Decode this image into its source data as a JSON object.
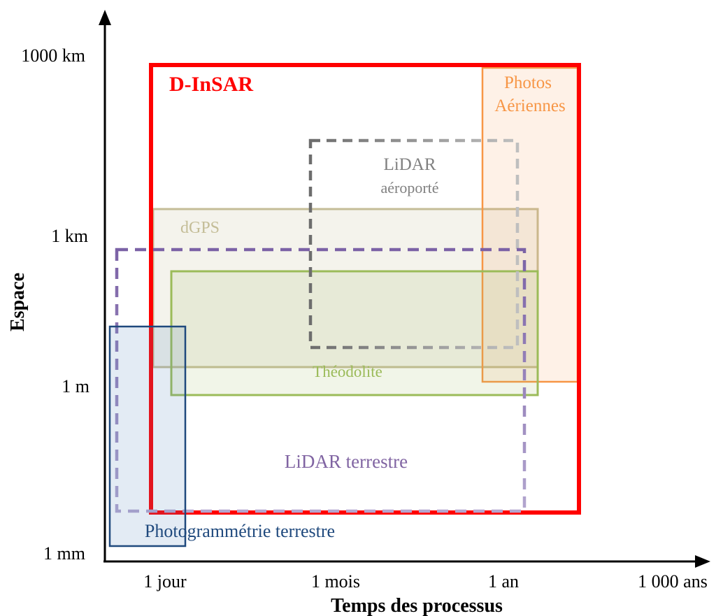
{
  "axes": {
    "x_title": "Temps des processus",
    "y_title": "Espace",
    "x_ticks": [
      "1 jour",
      "1 mois",
      "1 an",
      "1 000 ans"
    ],
    "y_ticks": [
      "1000 km",
      "1 km",
      "1 m",
      "1 mm"
    ]
  },
  "regions": {
    "dinsar": {
      "label": "D-InSAR",
      "color": "#ff0000"
    },
    "photos": {
      "label_line1": "Photos",
      "label_line2": "Aériennes",
      "color": "#f79646"
    },
    "lidar_aero": {
      "label_line1": "LiDAR",
      "label_line2": "aéroporté",
      "color": "#7f7f7f"
    },
    "dgps": {
      "label": "dGPS",
      "color": "#c4bd97"
    },
    "theodolite": {
      "label": "Théodolite",
      "color": "#9bbb59"
    },
    "lidar_terrestre": {
      "label": "LiDAR terrestre",
      "color": "#8064a2"
    },
    "photogrammetrie": {
      "label": "Photogrammétrie terrestre",
      "color": "#1f497d"
    }
  }
}
